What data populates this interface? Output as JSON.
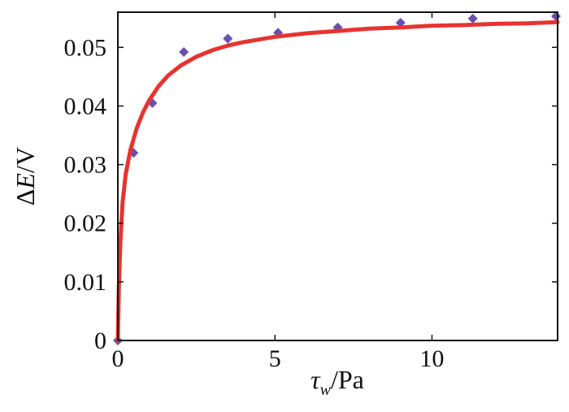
{
  "chart_data": {
    "type": "scatter",
    "title": "",
    "xlabel": {
      "symbol": "τ",
      "subscript": "w",
      "unit": "/Pa"
    },
    "ylabel": {
      "prefix": "Δ",
      "symbol": "E",
      "unit": "/V"
    },
    "xlim": [
      0,
      14
    ],
    "ylim": [
      0,
      0.056
    ],
    "xticks": [
      0,
      5,
      10
    ],
    "xtick_labels": [
      "0",
      "5",
      "10"
    ],
    "yticks": [
      0,
      0.01,
      0.02,
      0.03,
      0.04,
      0.05
    ],
    "ytick_labels": [
      "0",
      "0.01",
      "0.02",
      "0.03",
      "0.04",
      "0.05"
    ],
    "grid": false,
    "series": [
      {
        "kind": "points",
        "marker": "diamond",
        "color": "#6a4fb0",
        "x": [
          0.0,
          0.5,
          1.1,
          2.1,
          3.5,
          5.1,
          7.0,
          9.0,
          11.3,
          14.0
        ],
        "y": [
          0.0,
          0.032,
          0.0405,
          0.0492,
          0.0515,
          0.0525,
          0.0534,
          0.0542,
          0.0549,
          0.0553
        ]
      },
      {
        "kind": "line",
        "color": "#e8332f",
        "x": [
          0.0,
          0.03,
          0.08,
          0.15,
          0.25,
          0.4,
          0.6,
          0.8,
          1.0,
          1.3,
          1.6,
          2.0,
          2.5,
          3.0,
          3.5,
          4.0,
          5.0,
          6.0,
          7.0,
          8.0,
          9.0,
          10.0,
          11.0,
          12.0,
          13.0,
          14.0
        ],
        "y": [
          0.0,
          0.0087,
          0.0169,
          0.0235,
          0.0284,
          0.0325,
          0.0362,
          0.0389,
          0.041,
          0.0434,
          0.0452,
          0.0469,
          0.0484,
          0.0495,
          0.0503,
          0.0509,
          0.0518,
          0.0524,
          0.0528,
          0.0532,
          0.0534,
          0.0537,
          0.0538,
          0.054,
          0.0541,
          0.0543
        ]
      }
    ]
  },
  "colors": {
    "axis": "#111111",
    "points": "#6a4fb0",
    "fit": "#e8332f"
  }
}
